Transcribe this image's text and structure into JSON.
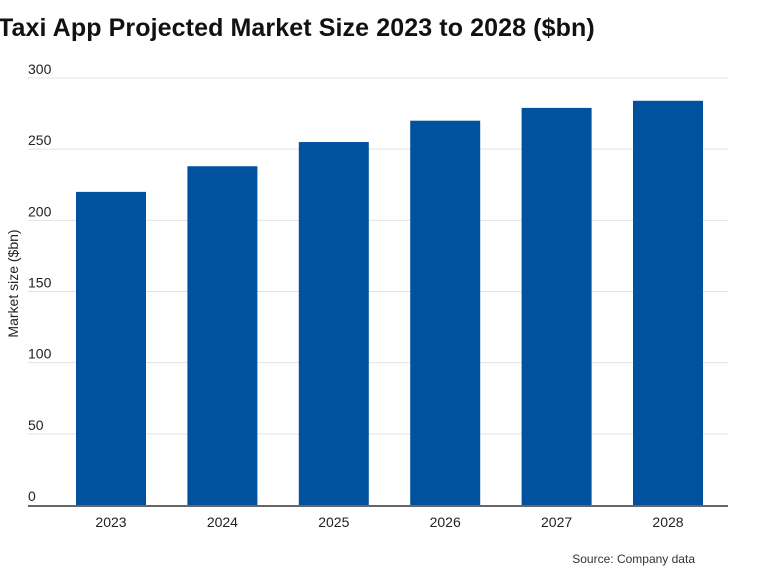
{
  "chart_data": {
    "type": "bar",
    "title": "Taxi App Projected Market Size 2023 to 2028 ($bn)",
    "ylabel": "Market size ($bn)",
    "xlabel": "",
    "categories": [
      "2023",
      "2024",
      "2025",
      "2026",
      "2027",
      "2028"
    ],
    "values": [
      220,
      238,
      255,
      270,
      279,
      284
    ],
    "ylim": [
      0,
      300
    ],
    "yticks": [
      0,
      50,
      100,
      150,
      200,
      250,
      300
    ],
    "grid": true,
    "legend": "none",
    "bar_color": "#00519e",
    "source": "Source: Company data"
  }
}
